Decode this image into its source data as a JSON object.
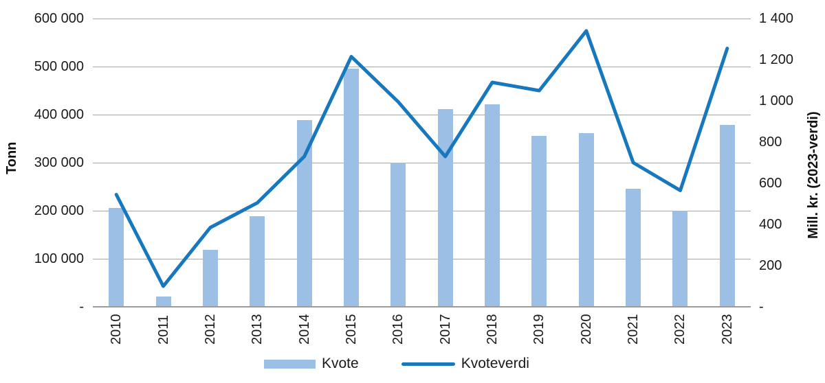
{
  "chart_data": {
    "type": "combo-bar-line",
    "categories": [
      "2010",
      "2011",
      "2012",
      "2013",
      "2014",
      "2015",
      "2016",
      "2017",
      "2018",
      "2019",
      "2020",
      "2021",
      "2022",
      "2023"
    ],
    "series": [
      {
        "name": "Kvote",
        "type": "bar",
        "axis": "left",
        "unit": "tonn",
        "color": "#9cbfe6",
        "values": [
          206000,
          21000,
          118000,
          188000,
          388000,
          496000,
          300000,
          412000,
          421000,
          356000,
          361000,
          246000,
          200000,
          378000
        ]
      },
      {
        "name": "Kvoteverdi",
        "type": "line",
        "axis": "right",
        "unit": "mill. kr",
        "color": "#1878be",
        "values": [
          545,
          100,
          385,
          505,
          730,
          1215,
          995,
          730,
          1090,
          1050,
          1340,
          700,
          565,
          1255
        ]
      }
    ],
    "left_axis": {
      "title": "Tonn",
      "min": 0,
      "max": 600000,
      "step": 100000,
      "tick_labels": [
        "600 000",
        "500 000",
        "400 000",
        "300 000",
        "200 000",
        "100 000",
        "-"
      ]
    },
    "right_axis": {
      "title": "Mill. kr. (2023-verdi)",
      "min": 0,
      "max": 1400,
      "step": 200,
      "tick_labels": [
        "1 400",
        "1 200",
        "1 000",
        "800",
        "600",
        "400",
        "200",
        "-"
      ]
    },
    "grid": "horizontal",
    "legend_position": "bottom"
  },
  "colors": {
    "bar": "#9cbfe6",
    "line": "#1878be",
    "gridline": "#a6a6a6",
    "axis_line": "#9b9b9b",
    "text": "#1a1a1a"
  }
}
